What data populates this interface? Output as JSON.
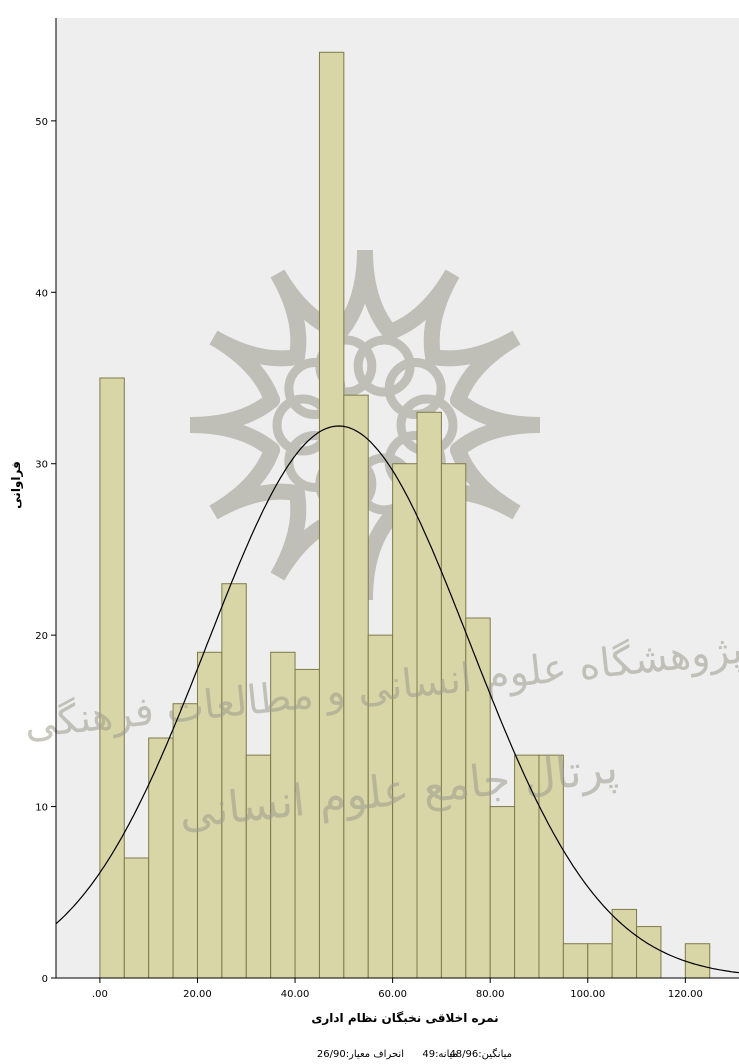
{
  "chart_data": {
    "type": "bar",
    "subtype": "histogram",
    "xlabel": "نمره اخلاقی نخبگان نظام اداری",
    "ylabel": "فراوانی",
    "xlim": [
      -9,
      131
    ],
    "ylim": [
      0,
      56
    ],
    "x_ticks": [
      {
        "value": 0,
        "label": ".00"
      },
      {
        "value": 20,
        "label": "20.00"
      },
      {
        "value": 40,
        "label": "40.00"
      },
      {
        "value": 60,
        "label": "60.00"
      },
      {
        "value": 80,
        "label": "80.00"
      },
      {
        "value": 100,
        "label": "100.00"
      },
      {
        "value": 120,
        "label": "120.00"
      }
    ],
    "y_ticks": [
      {
        "value": 0,
        "label": "0"
      },
      {
        "value": 10,
        "label": "10"
      },
      {
        "value": 20,
        "label": "20"
      },
      {
        "value": 30,
        "label": "30"
      },
      {
        "value": 40,
        "label": "40"
      },
      {
        "value": 50,
        "label": "50"
      }
    ],
    "bin_width": 5,
    "bins": [
      {
        "start": 0,
        "count": 35
      },
      {
        "start": 5,
        "count": 7
      },
      {
        "start": 10,
        "count": 14
      },
      {
        "start": 15,
        "count": 16
      },
      {
        "start": 20,
        "count": 19
      },
      {
        "start": 25,
        "count": 23
      },
      {
        "start": 30,
        "count": 13
      },
      {
        "start": 35,
        "count": 19
      },
      {
        "start": 40,
        "count": 18
      },
      {
        "start": 45,
        "count": 54
      },
      {
        "start": 50,
        "count": 34
      },
      {
        "start": 55,
        "count": 20
      },
      {
        "start": 60,
        "count": 30
      },
      {
        "start": 65,
        "count": 33
      },
      {
        "start": 70,
        "count": 30
      },
      {
        "start": 75,
        "count": 21
      },
      {
        "start": 80,
        "count": 10
      },
      {
        "start": 85,
        "count": 13
      },
      {
        "start": 90,
        "count": 13
      },
      {
        "start": 95,
        "count": 2
      },
      {
        "start": 100,
        "count": 2
      },
      {
        "start": 105,
        "count": 4
      },
      {
        "start": 110,
        "count": 3
      },
      {
        "start": 120,
        "count": 2
      }
    ],
    "normal_curve": {
      "mean": 48.96,
      "sd": 26.9,
      "peak": 32.2
    },
    "grid": false,
    "colors": {
      "bar_fill": "#d8d5a6",
      "bar_stroke": "#7f7a4a",
      "plot_bg": "#eeeeee",
      "curve": "#000000"
    },
    "stats": {
      "mean": "میانگین:48/96",
      "median": "میانه:49",
      "sd": "انحراف معیار:26/90"
    }
  },
  "watermark": {
    "logo": "rosette-logo",
    "line1": "پژوهشگاه علوم انسانی و مطالعات فرهنگی",
    "line2": "پرتال جامع علوم انسانی"
  }
}
